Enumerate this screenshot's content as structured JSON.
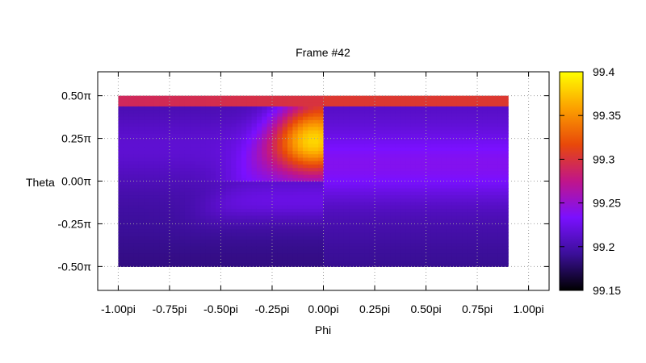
{
  "chart_data": {
    "type": "heatmap",
    "title": "Frame #42",
    "xlabel": "Phi",
    "ylabel": "Theta",
    "xlim": [
      -1.1,
      1.1
    ],
    "ylim": [
      -0.64,
      0.64
    ],
    "x_ticks": [
      {
        "value": -1.0,
        "label": "-1.00pi"
      },
      {
        "value": -0.75,
        "label": "-0.75pi"
      },
      {
        "value": -0.5,
        "label": "-0.50pi"
      },
      {
        "value": -0.25,
        "label": "-0.25pi"
      },
      {
        "value": 0.0,
        "label": "0.00pi"
      },
      {
        "value": 0.25,
        "label": "0.25pi"
      },
      {
        "value": 0.5,
        "label": "0.50pi"
      },
      {
        "value": 0.75,
        "label": "0.75pi"
      },
      {
        "value": 1.0,
        "label": "1.00pi"
      }
    ],
    "y_ticks": [
      {
        "value": 0.5,
        "label": "0.50π"
      },
      {
        "value": 0.25,
        "label": "0.25π"
      },
      {
        "value": 0.0,
        "label": "0.00π"
      },
      {
        "value": -0.25,
        "label": "-0.25π"
      },
      {
        "value": -0.5,
        "label": "-0.50π"
      }
    ],
    "data_extent": {
      "x": [
        -1.0,
        0.9
      ],
      "y": [
        -0.5,
        0.5
      ]
    },
    "colorbar": {
      "range": [
        99.15,
        99.4
      ],
      "ticks": [
        {
          "value": 99.4,
          "label": "99.4"
        },
        {
          "value": 99.35,
          "label": "99.35"
        },
        {
          "value": 99.3,
          "label": "99.3"
        },
        {
          "value": 99.25,
          "label": "99.25"
        },
        {
          "value": 99.2,
          "label": "99.2"
        },
        {
          "value": 99.15,
          "label": "99.15"
        }
      ],
      "palette": [
        "#000000",
        "#3b0f99",
        "#7a10ff",
        "#c0158a",
        "#e8480a",
        "#fca000",
        "#ffff00"
      ]
    },
    "grid": true,
    "legend": "none"
  }
}
